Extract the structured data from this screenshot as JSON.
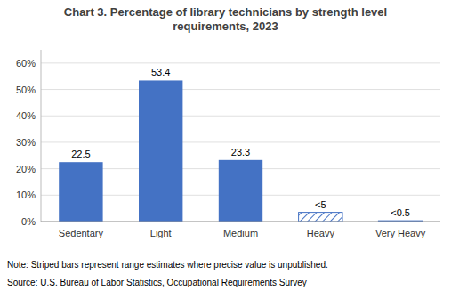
{
  "chart_data": {
    "type": "bar",
    "title": "Chart 3. Percentage of library technicians by strength level\nrequirements, 2023",
    "categories": [
      "Sedentary",
      "Light",
      "Medium",
      "Heavy",
      "Very Heavy"
    ],
    "values": [
      22.5,
      53.4,
      23.3,
      3.5,
      0.3
    ],
    "value_labels": [
      "22.5",
      "53.4",
      "23.3",
      "<5",
      "<0.5"
    ],
    "data_labels": true,
    "color": "#4472C4",
    "ylim": [
      0,
      65
    ],
    "yticks": [
      {
        "value": 0,
        "label": "0%"
      },
      {
        "value": 10,
        "label": "10%"
      },
      {
        "value": 20,
        "label": "20%"
      },
      {
        "value": 30,
        "label": "30%"
      },
      {
        "value": 40,
        "label": "40%"
      },
      {
        "value": 50,
        "label": "50%"
      },
      {
        "value": 60,
        "label": "60%"
      }
    ],
    "grid": true,
    "annotations": [
      "Note: Striped bars represent range estimates where precise value is unpublished.",
      "Source: U.S. Bureau of Labor Statistics, Occupational Requirements Survey"
    ]
  }
}
